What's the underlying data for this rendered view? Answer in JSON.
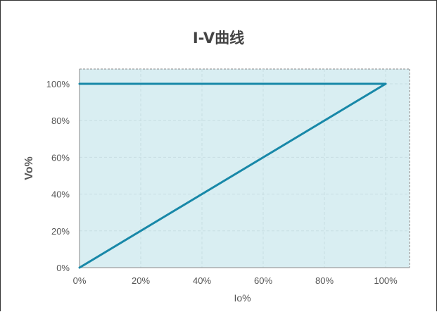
{
  "chart_data": {
    "type": "line",
    "title": "I-V曲线",
    "xlabel": "Io%",
    "ylabel": "Vo%",
    "xlim": [
      0,
      100
    ],
    "ylim": [
      0,
      100
    ],
    "x_ticks": [
      "0%",
      "20%",
      "40%",
      "60%",
      "80%",
      "100%"
    ],
    "y_ticks": [
      "0%",
      "20%",
      "40%",
      "60%",
      "80%",
      "100%"
    ],
    "grid": true,
    "series": [
      {
        "x": [
          0,
          100
        ],
        "y": [
          0,
          100
        ]
      },
      {
        "x": [
          0,
          100
        ],
        "y": [
          100,
          100
        ]
      }
    ],
    "colors": {
      "line": "#1888a8",
      "plot_bg": "#d9eef2",
      "grid": "#c8dde2",
      "border": "#8a8a8a"
    }
  }
}
